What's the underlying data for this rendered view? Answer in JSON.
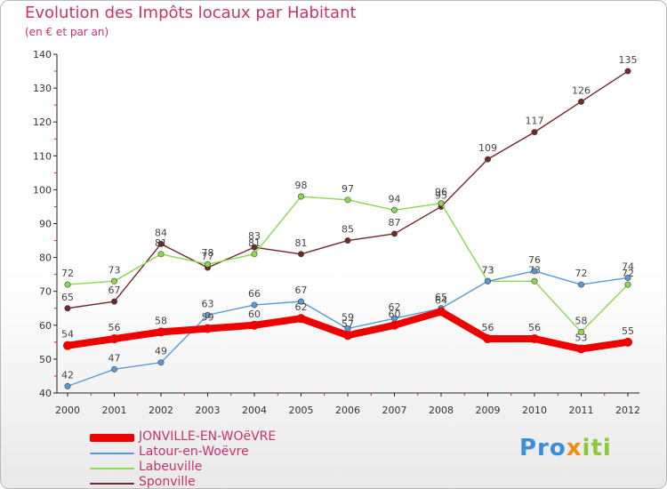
{
  "title": "Evolution des Impôts locaux par Habitant",
  "subtitle": "(en € et par an)",
  "brand": {
    "p1": "Pro",
    "p2": "x",
    "p3": "iti"
  },
  "colors": {
    "title": "#c8326e",
    "JONVILLE-EN-WOëVRE": "#ee0000",
    "Latour-en-Woëvre": "#5a9ad2",
    "Labeuville": "#8cd74f",
    "Sponville": "#6e2a2a"
  },
  "chart_data": {
    "type": "line",
    "title": "Evolution des Impôts locaux par Habitant",
    "subtitle": "(en € et par an)",
    "xlabel": "",
    "ylabel": "",
    "categories": [
      "2000",
      "2001",
      "2002",
      "2003",
      "2004",
      "2005",
      "2006",
      "2007",
      "2008",
      "2009",
      "2010",
      "2011",
      "2012"
    ],
    "ylim": [
      40,
      140
    ],
    "yticks": [
      40,
      50,
      60,
      70,
      80,
      90,
      100,
      110,
      120,
      130,
      140
    ],
    "legend_position": "bottom-left",
    "series": [
      {
        "name": "Sponville",
        "values": [
          65,
          67,
          84,
          77,
          83,
          81,
          85,
          87,
          95,
          109,
          117,
          126,
          135
        ]
      },
      {
        "name": "Labeuville",
        "values": [
          72,
          73,
          81,
          78,
          81,
          98,
          97,
          94,
          96,
          73,
          73,
          58,
          72
        ]
      },
      {
        "name": "Latour-en-Woëvre",
        "values": [
          42,
          47,
          49,
          63,
          66,
          67,
          59,
          62,
          65,
          73,
          76,
          72,
          74
        ]
      },
      {
        "name": "JONVILLE-EN-WOëVRE",
        "values": [
          54,
          56,
          58,
          59,
          60,
          62,
          57,
          60,
          64,
          56,
          56,
          53,
          55
        ]
      }
    ],
    "legend": [
      "JONVILLE-EN-WOëVRE",
      "Latour-en-Woëvre",
      "Labeuville",
      "Sponville"
    ]
  }
}
